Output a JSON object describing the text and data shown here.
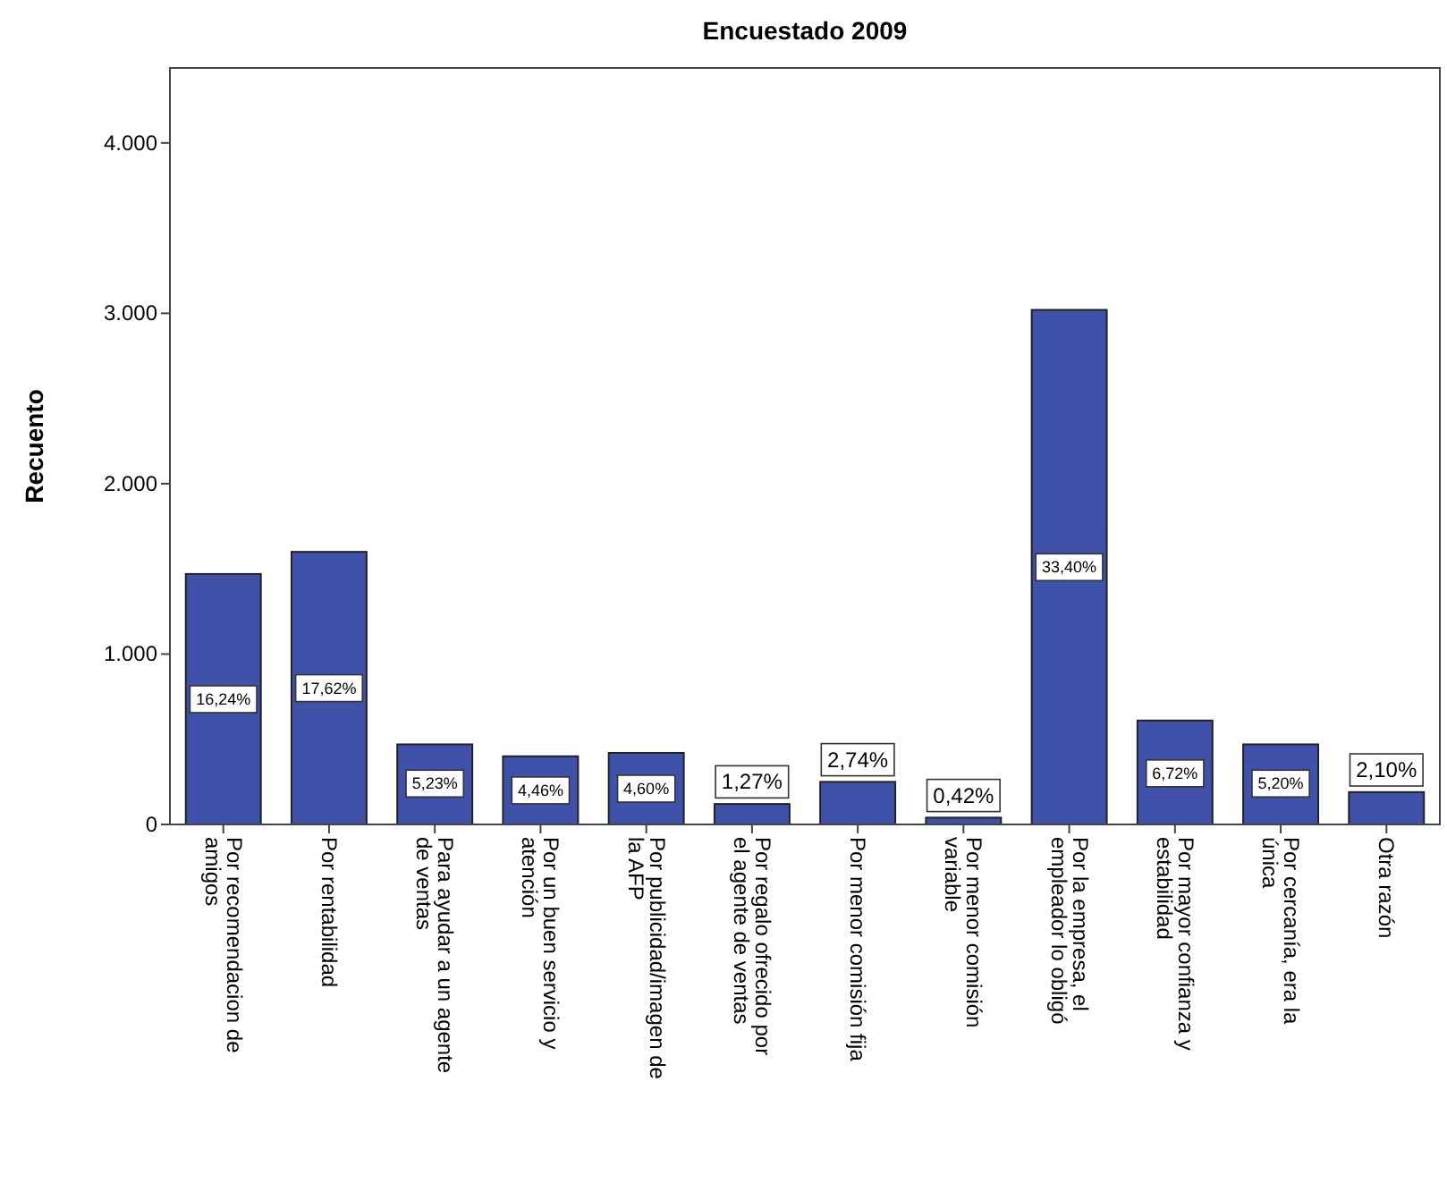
{
  "chart_data": {
    "type": "bar",
    "title": "Encuestado 2009",
    "ylabel": "Recuento",
    "categories": [
      "Por recomendacion de amigos",
      "Por rentabilidad",
      "Para ayudar a un agente de ventas",
      "Por un buen servicio y atención",
      "Por publicidad/imagen de la AFP",
      "Por regalo ofrecido por el agente de ventas",
      "Por menor comisión fija",
      "Por menor comisión variable",
      "Por la empresa, el empleador lo obligó",
      "Por mayor confianza y estabilidad",
      "Por cercanía, era la única",
      "Otra razón"
    ],
    "values": [
      1470,
      1600,
      470,
      400,
      420,
      120,
      250,
      40,
      3020,
      610,
      470,
      190
    ],
    "annotations": [
      {
        "text": "16,24%",
        "x": "Por recomendacion de amigos",
        "y": 735
      },
      {
        "text": "17,62%",
        "x": "Por rentabilidad",
        "y": 800
      },
      {
        "text": "5,23%",
        "x": "Para ayudar a un agente de ventas",
        "y": 240
      },
      {
        "text": "4,46%",
        "x": "Por un buen servicio y atención",
        "y": 200
      },
      {
        "text": "4,60%",
        "x": "Por publicidad/imagen de la AFP",
        "y": 210
      },
      {
        "text": "1,27%",
        "x": "Por regalo ofrecido por el agente de ventas",
        "y": 250
      },
      {
        "text": "2,74%",
        "x": "Por menor comisión fija",
        "y": 380
      },
      {
        "text": "0,42%",
        "x": "Por menor comisión variable",
        "y": 170
      },
      {
        "text": "33,40%",
        "x": "Por la empresa, el empleador lo obligó",
        "y": 1510
      },
      {
        "text": "6,72%",
        "x": "Por mayor confianza y estabilidad",
        "y": 300
      },
      {
        "text": "5,20%",
        "x": "Por cercanía, era la única",
        "y": 240
      },
      {
        "text": "2,10%",
        "x": "Otra razón",
        "y": 320
      }
    ],
    "color": "#3f51a8",
    "ylim": [
      0,
      4440
    ],
    "yticks": [
      {
        "value": 0,
        "label": "0"
      },
      {
        "value": 1000,
        "label": "1.000"
      },
      {
        "value": 2000,
        "label": "2.000"
      },
      {
        "value": 3000,
        "label": "3.000"
      },
      {
        "value": 4000,
        "label": "4.000"
      }
    ],
    "grid": false
  }
}
